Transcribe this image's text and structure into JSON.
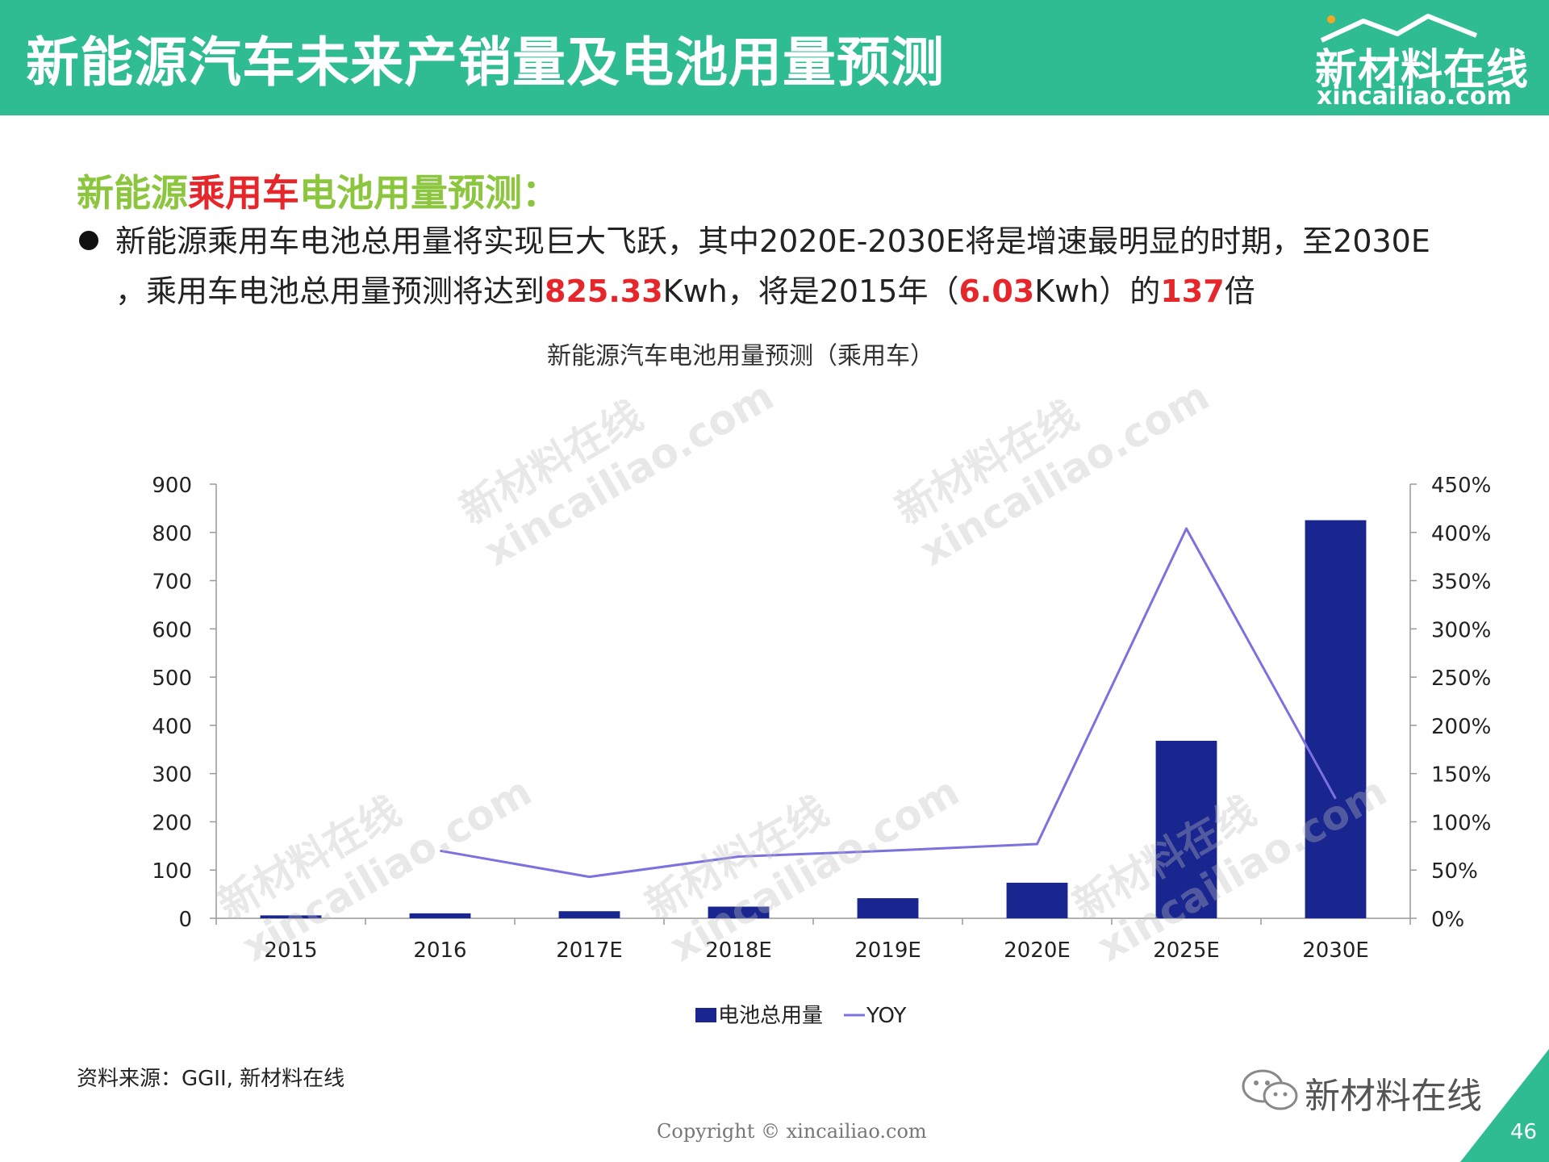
{
  "header": {
    "title": "新能源汽车未来产销量及电池用量预测",
    "logo_cn": "新材料在线",
    "logo_en": "xincailiao.com"
  },
  "subtitle": {
    "part1": "新能源",
    "part2": "乘用车",
    "part3": "电池用量预测："
  },
  "paragraph": {
    "t1": "新能源乘用车电池总用量将实现巨大飞跃，其中2020E-2030E将是增速最明显的时期，至2030E",
    "t2": "，乘用车电池总用量预测将达到",
    "v1": "825.33",
    "t3": "Kwh，将是2015年（",
    "v2": "6.03",
    "t4": "Kwh）的",
    "v3": "137",
    "t5": "倍"
  },
  "watermark": {
    "cn": "新材料在线",
    "en": "xincailiao.com"
  },
  "footer": {
    "source": "资料来源：GGII, 新材料在线",
    "wechat": "新材料在线",
    "copyright": "Copyright © xincailiao.com",
    "page": "46"
  },
  "colors": {
    "header": "#2fbc93",
    "bar": "#1a2690",
    "line": "#7b72e0",
    "subtitle_green": "#8cc63f",
    "highlight_red": "#e5262a"
  },
  "chart_data": {
    "type": "bar",
    "title": "新能源汽车电池用量预测（乘用车）",
    "categories": [
      "2015",
      "2016",
      "2017E",
      "2018E",
      "2019E",
      "2020E",
      "2025E",
      "2030E"
    ],
    "series": [
      {
        "name": "电池总用量",
        "type": "bar",
        "axis": "left",
        "values": [
          6.03,
          10.3,
          14.7,
          24.2,
          41.7,
          73.8,
          368,
          825.33
        ]
      },
      {
        "name": "YOY",
        "type": "line",
        "axis": "right",
        "values": [
          null,
          70,
          43,
          64,
          70,
          77,
          404,
          124
        ]
      }
    ],
    "y_left": {
      "min": 0,
      "max": 900,
      "step": 100,
      "ticks": [
        "0",
        "100",
        "200",
        "300",
        "400",
        "500",
        "600",
        "700",
        "800",
        "900"
      ]
    },
    "y_right": {
      "min": 0,
      "max": 450,
      "step": 50,
      "ticks": [
        "0%",
        "50%",
        "100%",
        "150%",
        "200%",
        "250%",
        "300%",
        "350%",
        "400%",
        "450%"
      ]
    },
    "legend": "bottom",
    "grid": false
  }
}
